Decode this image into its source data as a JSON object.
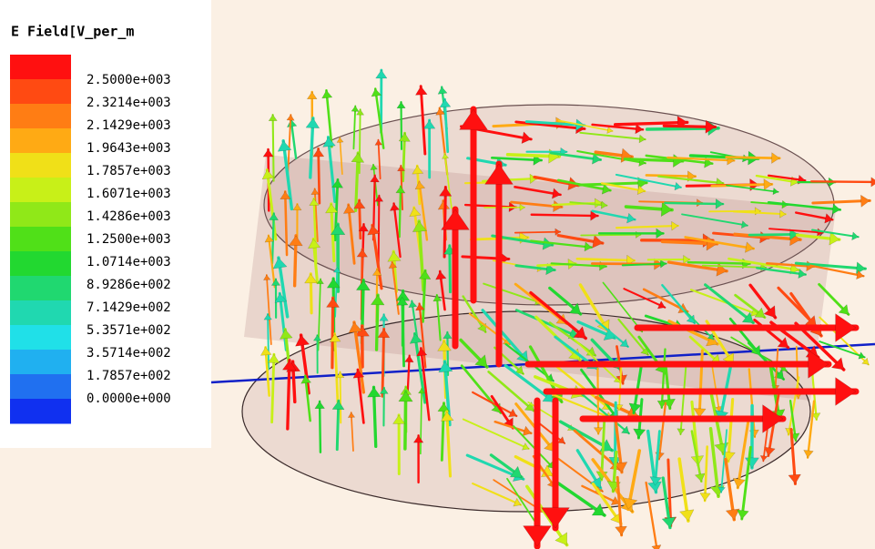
{
  "legend": {
    "title": "E Field[V_per_m",
    "labels": [
      "2.5000e+003",
      "2.3214e+003",
      "2.1429e+003",
      "1.9643e+003",
      "1.7857e+003",
      "1.6071e+003",
      "1.4286e+003",
      "1.2500e+003",
      "1.0714e+003",
      "8.9286e+002",
      "7.1429e+002",
      "5.3571e+002",
      "3.5714e+002",
      "1.7857e+002",
      "0.0000e+000"
    ],
    "colors": [
      "#ff1010",
      "#ff4a12",
      "#ff7d14",
      "#ffaa14",
      "#f0e018",
      "#c8f018",
      "#90e818",
      "#50e018",
      "#22d830",
      "#20d870",
      "#20d8b0",
      "#20e0e8",
      "#20b0f0",
      "#2070f0",
      "#1030f0"
    ]
  }
}
